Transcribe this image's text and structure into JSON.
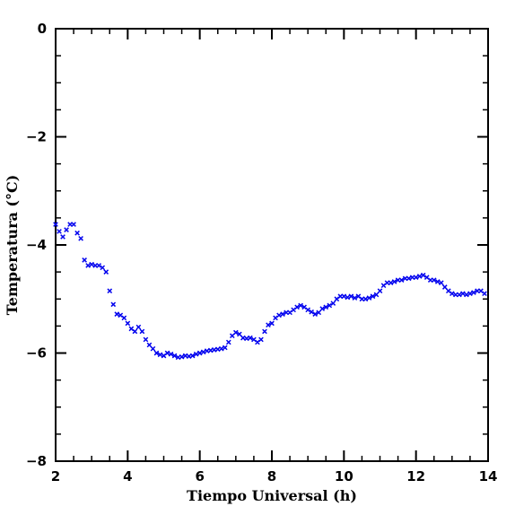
{
  "chart_data": {
    "type": "scatter",
    "title": "",
    "xlabel": "Tiempo Universal (h)",
    "ylabel": "Temperatura (°C)",
    "xlim": [
      2,
      14
    ],
    "ylim": [
      -8,
      0
    ],
    "x_ticks": [
      2,
      4,
      6,
      8,
      10,
      12,
      14
    ],
    "y_ticks": [
      0,
      -2,
      -4,
      -6,
      -8
    ],
    "x_tick_labels": [
      "2",
      "4",
      "6",
      "8",
      "10",
      "12",
      "14"
    ],
    "y_tick_labels": [
      "0",
      "−2",
      "−4",
      "−6",
      "−8"
    ],
    "marker": "x",
    "marker_color": "#0000ee",
    "grid": false,
    "series": [
      {
        "x": [
          2.0,
          2.1,
          2.2,
          2.3,
          2.4,
          2.5,
          2.6,
          2.7,
          2.8,
          2.9,
          3.0,
          3.1,
          3.2,
          3.3,
          3.4,
          3.5,
          3.6,
          3.7,
          3.8,
          3.9,
          4.0,
          4.1,
          4.2,
          4.3,
          4.4,
          4.5,
          4.6,
          4.7,
          4.8,
          4.9,
          5.0,
          5.1,
          5.2,
          5.3,
          5.4,
          5.5,
          5.6,
          5.7,
          5.8,
          5.9,
          6.0,
          6.1,
          6.2,
          6.3,
          6.4,
          6.5,
          6.6,
          6.7,
          6.8,
          6.9,
          7.0,
          7.1,
          7.2,
          7.3,
          7.4,
          7.5,
          7.6,
          7.7,
          7.8,
          7.9,
          8.0,
          8.1,
          8.2,
          8.3,
          8.4,
          8.5,
          8.6,
          8.7,
          8.8,
          8.9,
          9.0,
          9.1,
          9.2,
          9.3,
          9.4,
          9.5,
          9.6,
          9.7,
          9.8,
          9.9,
          10.0,
          10.1,
          10.2,
          10.3,
          10.4,
          10.5,
          10.6,
          10.7,
          10.8,
          10.9,
          11.0,
          11.1,
          11.2,
          11.3,
          11.4,
          11.5,
          11.6,
          11.7,
          11.8,
          11.9,
          12.0,
          12.1,
          12.2,
          12.3,
          12.4,
          12.5,
          12.6,
          12.7,
          12.8,
          12.9,
          13.0,
          13.1,
          13.2,
          13.3,
          13.4,
          13.5,
          13.6,
          13.7,
          13.8,
          13.9
        ],
        "y": [
          -3.62,
          -3.75,
          -3.85,
          -3.72,
          -3.62,
          -3.62,
          -3.78,
          -3.88,
          -4.28,
          -4.38,
          -4.36,
          -4.38,
          -4.38,
          -4.42,
          -4.5,
          -4.85,
          -5.1,
          -5.28,
          -5.3,
          -5.35,
          -5.45,
          -5.55,
          -5.6,
          -5.52,
          -5.6,
          -5.75,
          -5.85,
          -5.92,
          -6.0,
          -6.03,
          -6.05,
          -6.0,
          -6.02,
          -6.05,
          -6.08,
          -6.07,
          -6.05,
          -6.06,
          -6.05,
          -6.02,
          -6.0,
          -5.98,
          -5.96,
          -5.95,
          -5.94,
          -5.93,
          -5.92,
          -5.9,
          -5.8,
          -5.68,
          -5.62,
          -5.65,
          -5.72,
          -5.73,
          -5.72,
          -5.75,
          -5.8,
          -5.75,
          -5.6,
          -5.48,
          -5.45,
          -5.35,
          -5.3,
          -5.28,
          -5.25,
          -5.25,
          -5.2,
          -5.15,
          -5.12,
          -5.15,
          -5.2,
          -5.24,
          -5.28,
          -5.25,
          -5.18,
          -5.15,
          -5.12,
          -5.08,
          -5.0,
          -4.95,
          -4.95,
          -4.97,
          -4.95,
          -4.98,
          -4.95,
          -5.0,
          -5.0,
          -4.98,
          -4.95,
          -4.92,
          -4.85,
          -4.75,
          -4.7,
          -4.7,
          -4.68,
          -4.65,
          -4.65,
          -4.62,
          -4.62,
          -4.6,
          -4.6,
          -4.58,
          -4.56,
          -4.6,
          -4.65,
          -4.65,
          -4.68,
          -4.7,
          -4.78,
          -4.85,
          -4.9,
          -4.92,
          -4.92,
          -4.9,
          -4.92,
          -4.9,
          -4.88,
          -4.85,
          -4.85,
          -4.9
        ]
      }
    ]
  }
}
